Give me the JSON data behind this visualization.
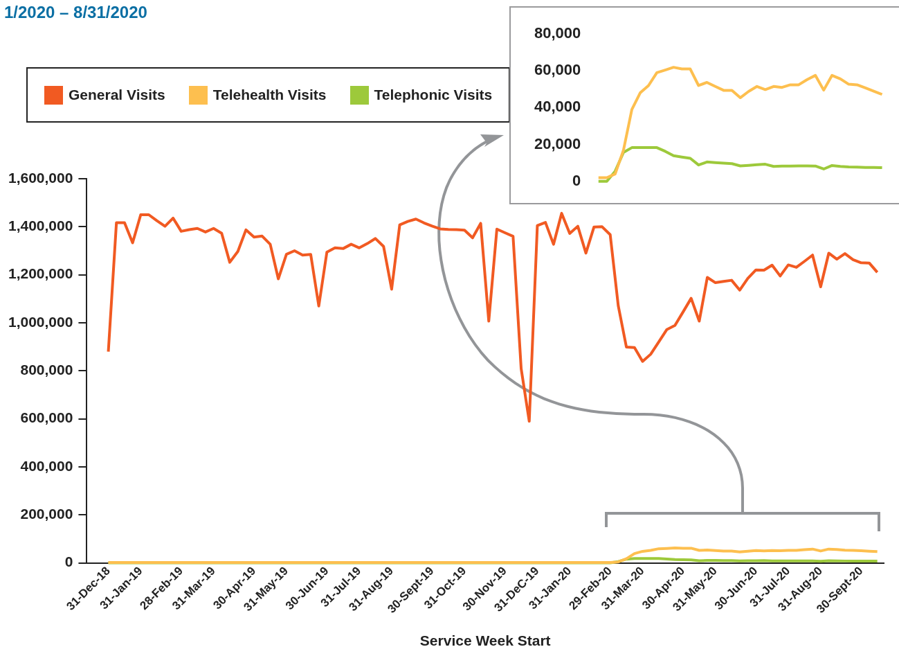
{
  "chart_data": [
    {
      "type": "line",
      "title": "1/2020 – 8/31/2020",
      "xlabel": "Service Week Start",
      "legend": "top left",
      "categories": [
        "31-Dec-18",
        null,
        null,
        null,
        "31-Jan-19",
        null,
        null,
        null,
        null,
        "28-Feb-19",
        null,
        null,
        null,
        "31-Mar-19",
        null,
        null,
        null,
        null,
        "30-Apr-19",
        null,
        null,
        null,
        "31-May-19",
        null,
        null,
        null,
        null,
        "30-Jun-19",
        null,
        null,
        null,
        "31-Jul-19",
        null,
        null,
        null,
        "31-Aug-19",
        null,
        null,
        null,
        null,
        "30-Sept-19",
        null,
        null,
        null,
        "31-Oct-19",
        null,
        null,
        null,
        null,
        "30-Nov-19",
        null,
        null,
        null,
        "31-DeC-19",
        null,
        null,
        null,
        "31-Jan-20",
        null,
        null,
        null,
        null,
        "29-Feb-20",
        null,
        null,
        null,
        "31-Mar-20",
        null,
        null,
        null,
        null,
        "30-Apr-20",
        null,
        null,
        null,
        "31-May-20",
        null,
        null,
        null,
        null,
        "30-Jun-20",
        null,
        null,
        null,
        "31-Jul-20",
        null,
        null,
        null,
        "31-Aug-20",
        null,
        null,
        null,
        null,
        "30-Sept-20",
        null,
        null
      ],
      "ylim": [
        0,
        1600000
      ],
      "yticks": [
        0,
        {
          "value": 200000,
          "label": "200,000"
        },
        {
          "value": 400000,
          "label": "400,000"
        },
        {
          "value": 600000,
          "label": "600,000"
        },
        {
          "value": 800000,
          "label": "800,000"
        },
        {
          "value": 1000000,
          "label": "1,000,000"
        },
        {
          "value": 1200000,
          "label": "1,200,000"
        },
        {
          "value": 1400000,
          "label": "1,400,000"
        },
        {
          "value": 1600000,
          "label": "1,600,000"
        }
      ],
      "series": [
        {
          "name": "General Visits",
          "color": "#f15a22",
          "values": [
            880000,
            1417000,
            1417000,
            1333000,
            1450000,
            1450000,
            1425000,
            1402000,
            1436000,
            1381000,
            1388000,
            1393000,
            1378000,
            1393000,
            1373000,
            1252000,
            1297000,
            1387000,
            1357000,
            1361000,
            1327000,
            1183000,
            1285000,
            1300000,
            1282000,
            1285000,
            1070000,
            1294000,
            1312000,
            1309000,
            1327000,
            1312000,
            1330000,
            1351000,
            1318000,
            1140000,
            1408000,
            1422000,
            1432000,
            1416000,
            1403000,
            1391000,
            1389000,
            1388000,
            1386000,
            1354000,
            1414000,
            1007000,
            1390000,
            1375000,
            1360000,
            809000,
            590000,
            1405000,
            1418000,
            1327000,
            1456000,
            1372000,
            1402000,
            1290000,
            1399000,
            1400000,
            1367000,
            1070000,
            899000,
            897000,
            839000,
            869000,
            920000,
            972000,
            989000,
            1045000,
            1102000,
            1007000,
            1189000,
            1167000,
            1172000,
            1177000,
            1136000,
            1185000,
            1220000,
            1219000,
            1240000,
            1195000,
            1241000,
            1231000,
            1256000,
            1282000,
            1150000,
            1290000,
            1265000,
            1288000,
            1263000,
            1250000,
            1249000,
            1210000
          ]
        },
        {
          "name": "Telehealth Visits",
          "color": "#fdbf4f",
          "values": [
            2000,
            2000,
            2000,
            2000,
            2000,
            2000,
            2000,
            2000,
            2000,
            2000,
            2000,
            2000,
            2000,
            2000,
            2000,
            2000,
            2000,
            2000,
            2000,
            2000,
            2000,
            2000,
            2000,
            2000,
            2000,
            2000,
            2000,
            2000,
            2000,
            2000,
            2000,
            2000,
            2000,
            2000,
            2000,
            2000,
            2000,
            2000,
            2000,
            2000,
            2000,
            2000,
            2000,
            2000,
            2000,
            2000,
            2000,
            2000,
            2000,
            2000,
            2000,
            2000,
            2000,
            2000,
            2000,
            2000,
            2000,
            2000,
            2000,
            2000,
            2000,
            2000,
            2000,
            4000,
            17000,
            39000,
            48000,
            52000,
            59000,
            60400,
            61900,
            61000,
            61000,
            52000,
            53700,
            51500,
            49400,
            49400,
            45400,
            48800,
            51500,
            49800,
            51500,
            51000,
            52400,
            52400,
            55200,
            57500,
            49500,
            57500,
            55600,
            52700,
            52400,
            50700,
            48900,
            47200
          ]
        },
        {
          "name": "Telephonic Visits",
          "color": "#9dc93b",
          "values": [
            0,
            0,
            0,
            0,
            0,
            0,
            0,
            0,
            0,
            0,
            0,
            0,
            0,
            0,
            0,
            0,
            0,
            0,
            0,
            0,
            0,
            0,
            0,
            0,
            0,
            0,
            0,
            0,
            0,
            0,
            0,
            0,
            0,
            0,
            0,
            0,
            0,
            0,
            0,
            0,
            0,
            0,
            0,
            0,
            0,
            0,
            0,
            0,
            0,
            0,
            0,
            0,
            0,
            0,
            0,
            0,
            0,
            0,
            0,
            0,
            0,
            0,
            0,
            5500,
            15700,
            18300,
            18300,
            18300,
            18300,
            16300,
            13900,
            13200,
            12500,
            8900,
            10500,
            10200,
            9900,
            9600,
            8400,
            8700,
            9000,
            9300,
            8100,
            8300,
            8300,
            8400,
            8400,
            8300,
            6700,
            8600,
            8100,
            7800,
            7700,
            7500,
            7500,
            7400
          ]
        }
      ]
    },
    {
      "type": "line",
      "tick_labels": "y",
      "categories": [
        null,
        null,
        null,
        null,
        null,
        null,
        null,
        null,
        null,
        null,
        null,
        null,
        null,
        null,
        null,
        null,
        null,
        null,
        null,
        null,
        null,
        null,
        null,
        null,
        null,
        null,
        null,
        null,
        null,
        null,
        null,
        null,
        null,
        null,
        null
      ],
      "ylim": [
        0,
        80000
      ],
      "yticks": [
        0,
        {
          "value": 20000,
          "label": "20,000"
        },
        {
          "value": 40000,
          "label": "40,000"
        },
        {
          "value": 60000,
          "label": "60,000"
        },
        {
          "value": 80000,
          "label": "80,000"
        }
      ],
      "series": [
        {
          "color": "#fdbf4f",
          "values": [
            2000,
            2000,
            4000,
            17000,
            39000,
            48000,
            52000,
            59000,
            60400,
            61900,
            61000,
            61000,
            52000,
            53700,
            51500,
            49400,
            49400,
            45400,
            48800,
            51500,
            49800,
            51500,
            51000,
            52400,
            52400,
            55200,
            57500,
            49500,
            57500,
            55600,
            52700,
            52400,
            50700,
            48900,
            47200
          ]
        },
        {
          "color": "#9dc93b",
          "values": [
            0,
            0,
            5500,
            15700,
            18300,
            18300,
            18300,
            18300,
            16300,
            13900,
            13200,
            12500,
            8900,
            10500,
            10200,
            9900,
            9600,
            8400,
            8700,
            9000,
            9300,
            8100,
            8300,
            8300,
            8400,
            8400,
            8300,
            6700,
            8600,
            8100,
            7800,
            7700,
            7500,
            7500,
            7400
          ]
        }
      ]
    }
  ]
}
